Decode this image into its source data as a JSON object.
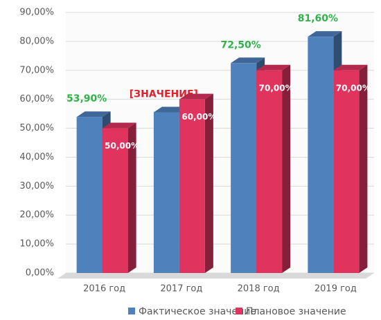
{
  "chart_data": {
    "type": "bar3d",
    "categories": [
      "2016 год",
      "2017 год",
      "2018 год",
      "2019 год"
    ],
    "series": [
      {
        "name": "Фактическое значение",
        "color": "#4f81bd",
        "values": [
          53.9,
          55.5,
          72.5,
          81.6
        ],
        "value_labels": [
          "53,90%",
          "[ЗНАЧЕНИЕ]",
          "72,50%",
          "81,60%"
        ],
        "label_colors": [
          "#2db34a",
          "#e0202a",
          "#2db34a",
          "#2db34a"
        ]
      },
      {
        "name": "Плановое значение",
        "color": "#e0345f",
        "values": [
          50,
          60,
          70,
          70
        ],
        "value_labels": [
          "50,00%",
          "60,00%",
          "70,00%",
          "70,00%"
        ],
        "label_colors": [
          "#ffffff",
          "#ffffff",
          "#ffffff",
          "#ffffff"
        ]
      }
    ],
    "ylim": [
      0,
      90
    ],
    "yticks": [
      {
        "value": 0,
        "label": "0,00%"
      },
      {
        "value": 10,
        "label": "10,00%"
      },
      {
        "value": 20,
        "label": "20,00%"
      },
      {
        "value": 30,
        "label": "30,00%"
      },
      {
        "value": 40,
        "label": "40,00%"
      },
      {
        "value": 50,
        "label": "50,00%"
      },
      {
        "value": 60,
        "label": "60,00%"
      },
      {
        "value": 70,
        "label": "70,00%"
      },
      {
        "value": 80,
        "label": "80,00%"
      },
      {
        "value": 90,
        "label": "90,00%"
      }
    ],
    "grid": true
  }
}
